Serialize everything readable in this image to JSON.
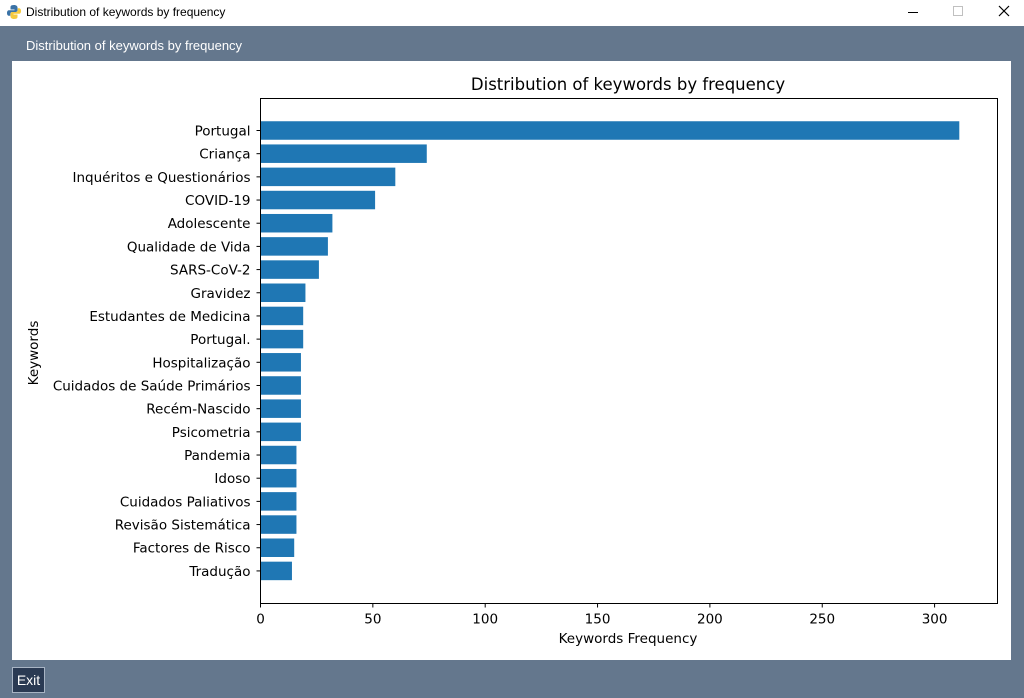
{
  "window": {
    "title": "Distribution of keywords by frequency",
    "icons": {
      "app": "python-icon",
      "minimize": "minimize-icon",
      "maximize": "maximize-icon",
      "close": "close-icon"
    }
  },
  "header": {
    "label": "Distribution of keywords by frequency"
  },
  "footer": {
    "exit_label": "Exit"
  },
  "colors": {
    "bar": "#1f77b4",
    "frame": "#64778d",
    "button": "#2a3a53"
  },
  "chart_data": {
    "type": "bar",
    "orientation": "horizontal",
    "title": "Distribution of keywords by frequency",
    "xlabel": "Keywords Frequency",
    "ylabel": "Keywords",
    "xlim": [
      0,
      328
    ],
    "xticks": [
      0,
      50,
      100,
      150,
      200,
      250,
      300
    ],
    "grid": false,
    "categories": [
      "Portugal",
      "Criança",
      "Inquéritos e Questionários",
      "COVID-19",
      "Adolescente",
      "Qualidade de Vida",
      "SARS-CoV-2",
      "Gravidez",
      "Estudantes de Medicina",
      "Portugal.",
      "Hospitalização",
      "Cuidados de Saúde Primários",
      "Recém-Nascido",
      "Psicometria",
      "Pandemia",
      "Idoso",
      "Cuidados Paliativos",
      "Revisão Sistemática",
      "Factores de Risco",
      "Tradução"
    ],
    "values": [
      311,
      74,
      60,
      51,
      32,
      30,
      26,
      20,
      19,
      19,
      18,
      18,
      18,
      18,
      16,
      16,
      16,
      16,
      15,
      14
    ]
  }
}
